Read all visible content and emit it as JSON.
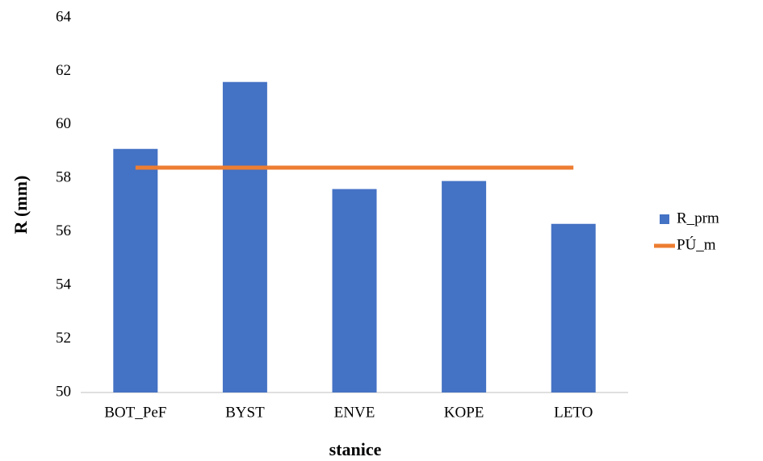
{
  "chart_data": {
    "type": "bar",
    "x_label": "stanice",
    "y_label": "R (mm)",
    "categories": [
      "BOT_PeF",
      "BYST",
      "ENVE",
      "KOPE",
      "LETO"
    ],
    "series": [
      {
        "name": "R_prm",
        "type": "bar",
        "color": "#4472c4",
        "values": [
          59.1,
          61.6,
          57.6,
          57.9,
          56.3
        ]
      },
      {
        "name": "PÚ_m",
        "type": "line",
        "color": "#ed7d31",
        "values": [
          58.4,
          58.4,
          58.4,
          58.4,
          58.4
        ]
      }
    ],
    "ylim": [
      50,
      64
    ],
    "yticks": [
      50,
      52,
      54,
      56,
      58,
      60,
      62,
      64
    ],
    "grid": false,
    "legend": "right"
  }
}
